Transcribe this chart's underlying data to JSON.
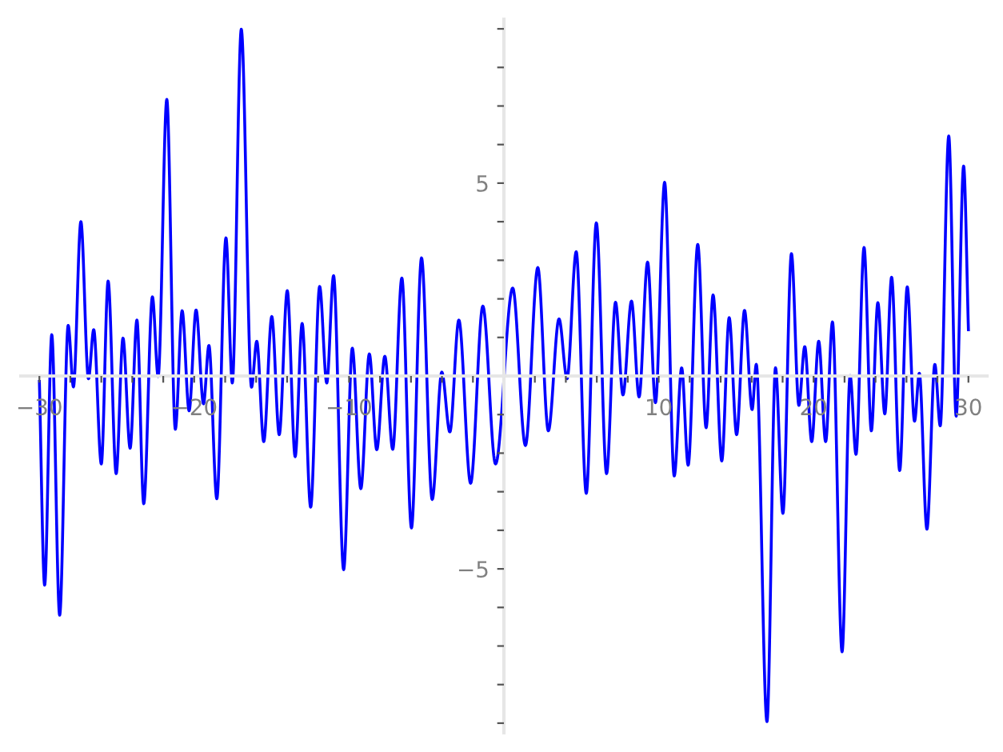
{
  "chart_data": {
    "type": "line",
    "color": "#0000ff",
    "line_style": "solid",
    "marker": "none",
    "grid": false,
    "legend": false,
    "x": [
      -30,
      -29.66,
      -29.2,
      -28.69,
      -28.14,
      -27.8,
      -27.32,
      -26.83,
      -26.49,
      -26.0,
      -25.56,
      -25.04,
      -24.6,
      -24.14,
      -23.7,
      -23.26,
      -22.7,
      -22.33,
      -21.77,
      -21.22,
      -20.78,
      -20.33,
      -19.88,
      -19.4,
      -19.05,
      -18.54,
      -17.95,
      -17.54,
      -16.96,
      -16.3,
      -15.96,
      -15.51,
      -14.99,
      -14.51,
      -13.99,
      -13.48,
      -13.03,
      -12.48,
      -11.9,
      -11.44,
      -11.0,
      -10.35,
      -9.79,
      -9.24,
      -8.69,
      -8.21,
      -7.69,
      -7.18,
      -6.59,
      -5.97,
      -5.32,
      -4.63,
      -4.01,
      -3.49,
      -2.91,
      -2.15,
      -1.36,
      -0.54,
      0.57,
      1.39,
      2.19,
      2.87,
      3.56,
      4.08,
      4.67,
      5.32,
      5.97,
      6.63,
      7.21,
      7.69,
      8.24,
      8.73,
      9.28,
      9.79,
      10.38,
      11.0,
      11.48,
      11.9,
      12.52,
      13.06,
      13.51,
      14.07,
      14.55,
      15.03,
      15.54,
      16.03,
      16.3,
      16.99,
      17.54,
      18.02,
      18.57,
      19.05,
      19.43,
      19.88,
      20.33,
      20.78,
      21.22,
      21.84,
      22.36,
      22.74,
      23.26,
      23.73,
      24.15,
      24.6,
      25.04,
      25.56,
      26.05,
      26.52,
      26.83,
      27.32,
      27.83,
      28.18,
      28.73,
      29.21,
      29.69,
      30
    ],
    "values": [
      -0.14,
      -5.42,
      1.07,
      -6.2,
      1.31,
      -0.28,
      4.0,
      -0.07,
      1.2,
      -2.28,
      2.46,
      -2.53,
      0.98,
      -1.87,
      1.45,
      -3.31,
      2.05,
      -0.01,
      7.17,
      -1.38,
      1.69,
      -0.9,
      1.71,
      -0.72,
      0.79,
      -3.18,
      3.58,
      -0.18,
      8.99,
      -0.29,
      0.9,
      -1.7,
      1.54,
      -1.52,
      2.21,
      -2.09,
      1.36,
      -3.4,
      2.32,
      -0.18,
      2.6,
      -5.02,
      0.72,
      -2.92,
      0.57,
      -1.91,
      0.51,
      -1.9,
      2.54,
      -3.94,
      3.06,
      -3.2,
      0.1,
      -1.45,
      1.45,
      -2.78,
      1.81,
      -2.28,
      2.28,
      -1.8,
      2.81,
      -1.42,
      1.48,
      -0.07,
      3.22,
      -3.04,
      3.97,
      -2.53,
      1.91,
      -0.49,
      1.94,
      -0.54,
      2.95,
      -0.69,
      5.02,
      -2.59,
      0.21,
      -2.31,
      3.41,
      -1.34,
      2.1,
      -2.2,
      1.51,
      -1.52,
      1.7,
      -0.87,
      0.3,
      -8.96,
      0.21,
      -3.56,
      3.17,
      -0.76,
      0.76,
      -1.7,
      0.9,
      -1.7,
      1.4,
      -7.15,
      0.01,
      -2.03,
      3.33,
      -1.42,
      1.9,
      -0.98,
      2.56,
      -2.45,
      2.31,
      -1.17,
      0.07,
      -3.97,
      0.3,
      -1.29,
      6.22,
      -1.04,
      5.44,
      1.2
    ],
    "xlim": [
      -31.2,
      31.2
    ],
    "ylim": [
      -9.25,
      9.25
    ],
    "xticks": [
      {
        "value": -30,
        "label": "−30"
      },
      {
        "value": -28,
        "label": null
      },
      {
        "value": -26,
        "label": null
      },
      {
        "value": -24,
        "label": null
      },
      {
        "value": -22,
        "label": null
      },
      {
        "value": -20,
        "label": "−20"
      },
      {
        "value": -18,
        "label": null
      },
      {
        "value": -16,
        "label": null
      },
      {
        "value": -14,
        "label": null
      },
      {
        "value": -12,
        "label": null
      },
      {
        "value": -10,
        "label": "−10"
      },
      {
        "value": -8,
        "label": null
      },
      {
        "value": -6,
        "label": null
      },
      {
        "value": -4,
        "label": null
      },
      {
        "value": -2,
        "label": null
      },
      {
        "value": 2,
        "label": null
      },
      {
        "value": 4,
        "label": null
      },
      {
        "value": 6,
        "label": null
      },
      {
        "value": 8,
        "label": null
      },
      10,
      {
        "value": 12,
        "label": null
      },
      {
        "value": 14,
        "label": null
      },
      {
        "value": 16,
        "label": null
      },
      {
        "value": 18,
        "label": null
      },
      20,
      {
        "value": 22,
        "label": null
      },
      {
        "value": 24,
        "label": null
      },
      {
        "value": 26,
        "label": null
      },
      {
        "value": 28,
        "label": null
      },
      30
    ],
    "yticks": [
      {
        "value": -9,
        "label": null
      },
      {
        "value": -8,
        "label": null
      },
      {
        "value": -7,
        "label": null
      },
      {
        "value": -6,
        "label": null
      },
      {
        "value": -5,
        "label": "−5"
      },
      {
        "value": -4,
        "label": null
      },
      {
        "value": -3,
        "label": null
      },
      {
        "value": -2,
        "label": null
      },
      {
        "value": -1,
        "label": null
      },
      {
        "value": 1,
        "label": null
      },
      {
        "value": 2,
        "label": null
      },
      {
        "value": 3,
        "label": null
      },
      {
        "value": 4,
        "label": null
      },
      5,
      {
        "value": 6,
        "label": null
      },
      {
        "value": 7,
        "label": null
      },
      {
        "value": 8,
        "label": null
      },
      {
        "value": 9,
        "label": null
      }
    ]
  }
}
